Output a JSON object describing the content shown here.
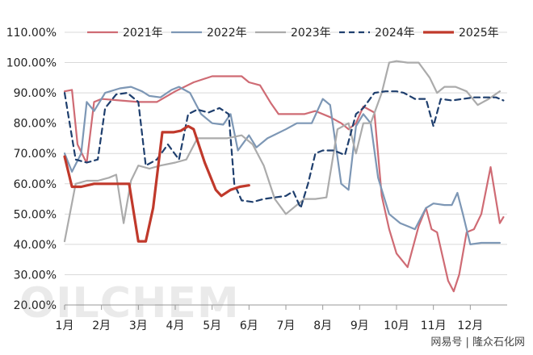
{
  "chart_data": {
    "type": "line",
    "title": "",
    "xlabel": "",
    "ylabel": "",
    "x_range": [
      1,
      13
    ],
    "ylim": [
      0.2,
      1.1
    ],
    "y_ticks": [
      "110.00%",
      "100.00%",
      "90.00%",
      "80.00%",
      "70.00%",
      "60.00%",
      "50.00%",
      "40.00%",
      "30.00%",
      "20.00%"
    ],
    "x_ticks": [
      "1月",
      "2月",
      "3月",
      "4月",
      "5月",
      "6月",
      "7月",
      "8月",
      "9月",
      "10月",
      "11月",
      "12月"
    ],
    "grid": "horizontal",
    "legend_position": "top",
    "series": [
      {
        "name": "2021年",
        "color": "#cf6b74",
        "dash": "solid",
        "width": 2.2,
        "points": [
          [
            1.0,
            0.905
          ],
          [
            1.2,
            0.91
          ],
          [
            1.35,
            0.73
          ],
          [
            1.55,
            0.68
          ],
          [
            1.6,
            0.67
          ],
          [
            1.8,
            0.87
          ],
          [
            2.0,
            0.88
          ],
          [
            2.5,
            0.875
          ],
          [
            3.0,
            0.87
          ],
          [
            3.5,
            0.87
          ],
          [
            4.0,
            0.905
          ],
          [
            4.5,
            0.935
          ],
          [
            5.0,
            0.955
          ],
          [
            5.3,
            0.955
          ],
          [
            5.8,
            0.955
          ],
          [
            6.0,
            0.935
          ],
          [
            6.3,
            0.925
          ],
          [
            6.6,
            0.865
          ],
          [
            6.8,
            0.83
          ],
          [
            7.0,
            0.83
          ],
          [
            7.5,
            0.83
          ],
          [
            7.8,
            0.84
          ],
          [
            8.2,
            0.82
          ],
          [
            8.5,
            0.8
          ],
          [
            8.7,
            0.78
          ],
          [
            8.9,
            0.8
          ],
          [
            9.1,
            0.855
          ],
          [
            9.4,
            0.835
          ],
          [
            9.6,
            0.56
          ],
          [
            9.8,
            0.45
          ],
          [
            10.0,
            0.37
          ],
          [
            10.3,
            0.325
          ],
          [
            10.6,
            0.46
          ],
          [
            10.8,
            0.52
          ],
          [
            10.95,
            0.45
          ],
          [
            11.1,
            0.44
          ],
          [
            11.4,
            0.28
          ],
          [
            11.55,
            0.245
          ],
          [
            11.7,
            0.3
          ],
          [
            11.9,
            0.44
          ],
          [
            12.1,
            0.45
          ],
          [
            12.3,
            0.5
          ],
          [
            12.55,
            0.655
          ],
          [
            12.8,
            0.47
          ],
          [
            12.9,
            0.49
          ]
        ]
      },
      {
        "name": "2022年",
        "color": "#7d97b5",
        "dash": "solid",
        "width": 2.2,
        "points": [
          [
            1.0,
            0.7
          ],
          [
            1.2,
            0.64
          ],
          [
            1.45,
            0.7
          ],
          [
            1.6,
            0.87
          ],
          [
            1.8,
            0.84
          ],
          [
            2.1,
            0.9
          ],
          [
            2.5,
            0.915
          ],
          [
            2.8,
            0.92
          ],
          [
            3.1,
            0.905
          ],
          [
            3.3,
            0.89
          ],
          [
            3.6,
            0.885
          ],
          [
            3.9,
            0.91
          ],
          [
            4.1,
            0.92
          ],
          [
            4.4,
            0.9
          ],
          [
            4.7,
            0.83
          ],
          [
            5.0,
            0.8
          ],
          [
            5.3,
            0.795
          ],
          [
            5.5,
            0.83
          ],
          [
            5.7,
            0.71
          ],
          [
            6.0,
            0.76
          ],
          [
            6.2,
            0.72
          ],
          [
            6.5,
            0.75
          ],
          [
            7.0,
            0.78
          ],
          [
            7.3,
            0.8
          ],
          [
            7.7,
            0.8
          ],
          [
            8.0,
            0.88
          ],
          [
            8.2,
            0.86
          ],
          [
            8.5,
            0.6
          ],
          [
            8.7,
            0.58
          ],
          [
            8.9,
            0.79
          ],
          [
            9.1,
            0.83
          ],
          [
            9.3,
            0.8
          ],
          [
            9.5,
            0.62
          ],
          [
            9.8,
            0.5
          ],
          [
            10.1,
            0.47
          ],
          [
            10.5,
            0.45
          ],
          [
            10.8,
            0.52
          ],
          [
            11.0,
            0.535
          ],
          [
            11.3,
            0.53
          ],
          [
            11.5,
            0.53
          ],
          [
            11.65,
            0.57
          ],
          [
            11.8,
            0.5
          ],
          [
            12.0,
            0.4
          ],
          [
            12.3,
            0.405
          ],
          [
            12.6,
            0.405
          ],
          [
            12.8,
            0.405
          ]
        ]
      },
      {
        "name": "2023年",
        "color": "#ababab",
        "dash": "solid",
        "width": 2.2,
        "points": [
          [
            1.0,
            0.41
          ],
          [
            1.3,
            0.6
          ],
          [
            1.6,
            0.61
          ],
          [
            1.9,
            0.61
          ],
          [
            2.2,
            0.62
          ],
          [
            2.4,
            0.63
          ],
          [
            2.6,
            0.47
          ],
          [
            2.8,
            0.61
          ],
          [
            3.0,
            0.66
          ],
          [
            3.3,
            0.65
          ],
          [
            3.6,
            0.66
          ],
          [
            4.0,
            0.67
          ],
          [
            4.3,
            0.68
          ],
          [
            4.6,
            0.75
          ],
          [
            5.0,
            0.75
          ],
          [
            5.4,
            0.75
          ],
          [
            5.8,
            0.76
          ],
          [
            6.1,
            0.73
          ],
          [
            6.4,
            0.66
          ],
          [
            6.7,
            0.55
          ],
          [
            7.0,
            0.5
          ],
          [
            7.2,
            0.52
          ],
          [
            7.5,
            0.55
          ],
          [
            7.8,
            0.55
          ],
          [
            8.1,
            0.555
          ],
          [
            8.4,
            0.78
          ],
          [
            8.7,
            0.8
          ],
          [
            8.9,
            0.7
          ],
          [
            9.1,
            0.8
          ],
          [
            9.3,
            0.8
          ],
          [
            9.6,
            0.9
          ],
          [
            9.8,
            1.0
          ],
          [
            10.0,
            1.005
          ],
          [
            10.3,
            1.0
          ],
          [
            10.6,
            1.0
          ],
          [
            10.9,
            0.95
          ],
          [
            11.1,
            0.9
          ],
          [
            11.3,
            0.92
          ],
          [
            11.6,
            0.92
          ],
          [
            11.9,
            0.905
          ],
          [
            12.2,
            0.86
          ],
          [
            12.5,
            0.88
          ],
          [
            12.8,
            0.905
          ]
        ]
      },
      {
        "name": "2024年",
        "color": "#1f3f6e",
        "dash": "dashed",
        "width": 2.2,
        "points": [
          [
            1.0,
            0.9
          ],
          [
            1.3,
            0.68
          ],
          [
            1.6,
            0.67
          ],
          [
            1.9,
            0.68
          ],
          [
            2.1,
            0.85
          ],
          [
            2.4,
            0.895
          ],
          [
            2.7,
            0.9
          ],
          [
            3.0,
            0.87
          ],
          [
            3.2,
            0.66
          ],
          [
            3.5,
            0.68
          ],
          [
            3.8,
            0.73
          ],
          [
            4.1,
            0.68
          ],
          [
            4.35,
            0.83
          ],
          [
            4.6,
            0.845
          ],
          [
            4.9,
            0.835
          ],
          [
            5.2,
            0.85
          ],
          [
            5.45,
            0.83
          ],
          [
            5.6,
            0.6
          ],
          [
            5.8,
            0.545
          ],
          [
            6.1,
            0.54
          ],
          [
            6.4,
            0.55
          ],
          [
            6.7,
            0.555
          ],
          [
            7.0,
            0.56
          ],
          [
            7.2,
            0.575
          ],
          [
            7.4,
            0.52
          ],
          [
            7.6,
            0.6
          ],
          [
            7.8,
            0.7
          ],
          [
            8.0,
            0.71
          ],
          [
            8.3,
            0.71
          ],
          [
            8.6,
            0.695
          ],
          [
            8.9,
            0.83
          ],
          [
            9.1,
            0.85
          ],
          [
            9.4,
            0.9
          ],
          [
            9.7,
            0.905
          ],
          [
            10.0,
            0.905
          ],
          [
            10.2,
            0.9
          ],
          [
            10.5,
            0.88
          ],
          [
            10.8,
            0.88
          ],
          [
            11.0,
            0.79
          ],
          [
            11.2,
            0.88
          ],
          [
            11.5,
            0.875
          ],
          [
            11.8,
            0.88
          ],
          [
            12.1,
            0.885
          ],
          [
            12.4,
            0.885
          ],
          [
            12.7,
            0.885
          ],
          [
            12.9,
            0.875
          ]
        ]
      },
      {
        "name": "2025年",
        "color": "#c0392b",
        "dash": "solid",
        "width": 3.2,
        "points": [
          [
            1.0,
            0.69
          ],
          [
            1.2,
            0.59
          ],
          [
            1.45,
            0.59
          ],
          [
            1.8,
            0.6
          ],
          [
            2.1,
            0.6
          ],
          [
            2.5,
            0.6
          ],
          [
            2.75,
            0.6
          ],
          [
            3.0,
            0.41
          ],
          [
            3.2,
            0.41
          ],
          [
            3.4,
            0.52
          ],
          [
            3.65,
            0.77
          ],
          [
            3.95,
            0.77
          ],
          [
            4.15,
            0.775
          ],
          [
            4.35,
            0.79
          ],
          [
            4.5,
            0.78
          ],
          [
            4.8,
            0.67
          ],
          [
            5.1,
            0.58
          ],
          [
            5.25,
            0.56
          ],
          [
            5.5,
            0.58
          ],
          [
            5.75,
            0.59
          ],
          [
            6.0,
            0.595
          ]
        ]
      }
    ]
  },
  "watermark": "OILCHEM",
  "source": "网易号 | 隆众石化网"
}
